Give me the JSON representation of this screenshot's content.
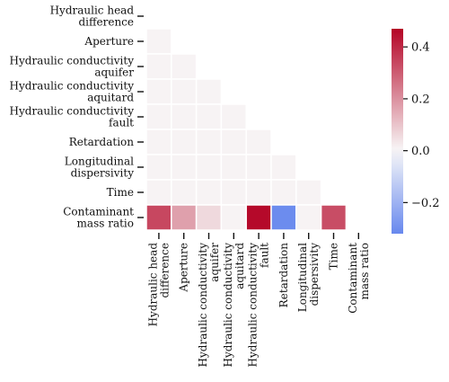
{
  "chart_data": {
    "type": "heatmap",
    "variables": [
      [
        "Hydraulic head",
        "difference"
      ],
      [
        "Aperture"
      ],
      [
        "Hydraulic conductivity",
        "aquifer"
      ],
      [
        "Hydraulic conductivity",
        "aquitard"
      ],
      [
        "Hydraulic conductivity",
        "fault"
      ],
      [
        "Retardation"
      ],
      [
        "Longitudinal",
        "dispersivity"
      ],
      [
        "Time"
      ],
      [
        "Contaminant",
        "mass ratio"
      ]
    ],
    "mask": "upper-triangle-including-diagonal",
    "matrix": [
      [
        null,
        null,
        null,
        null,
        null,
        null,
        null,
        null,
        null
      ],
      [
        0.01,
        null,
        null,
        null,
        null,
        null,
        null,
        null,
        null
      ],
      [
        0.01,
        0.01,
        null,
        null,
        null,
        null,
        null,
        null,
        null
      ],
      [
        0.01,
        0.01,
        0.01,
        null,
        null,
        null,
        null,
        null,
        null
      ],
      [
        0.01,
        0.01,
        0.01,
        0.01,
        null,
        null,
        null,
        null,
        null
      ],
      [
        0.01,
        0.01,
        0.01,
        0.01,
        0.01,
        null,
        null,
        null,
        null
      ],
      [
        0.01,
        0.01,
        0.01,
        0.01,
        0.01,
        0.01,
        null,
        null,
        null
      ],
      [
        0.01,
        0.01,
        0.01,
        0.01,
        0.01,
        0.01,
        0.01,
        null,
        null
      ],
      [
        0.34,
        0.17,
        0.06,
        0.01,
        0.46,
        -0.31,
        0.01,
        0.33,
        null
      ]
    ],
    "colorbar": {
      "vmin": -0.32,
      "vmax": 0.47,
      "ticks": [
        -0.2,
        0.0,
        0.2,
        0.4
      ],
      "tick_labels": [
        "−0.2",
        "0.0",
        "0.2",
        "0.4"
      ]
    },
    "colors": {
      "negative": "#6788ee",
      "neutral": "#f8f8f8",
      "positive": "#b40426"
    }
  }
}
